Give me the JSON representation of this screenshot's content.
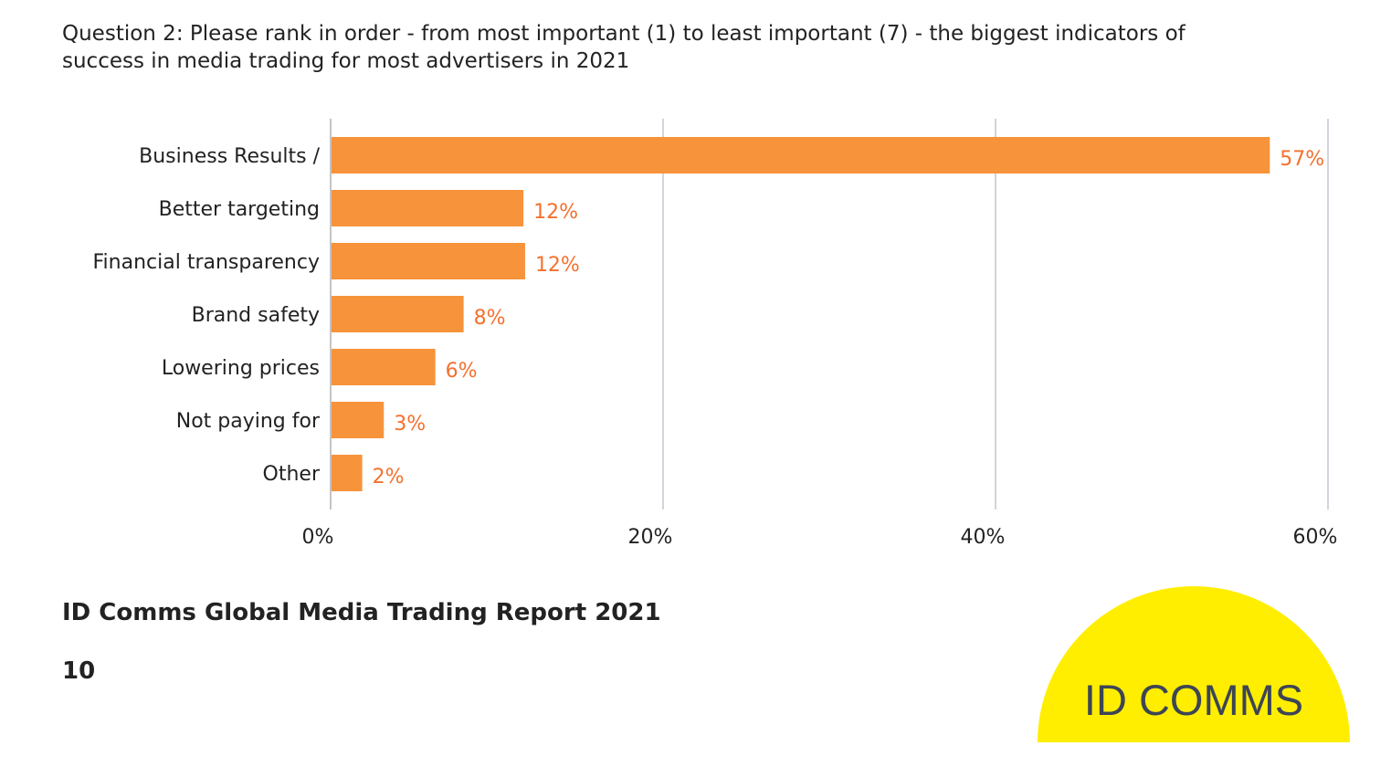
{
  "chart_data": {
    "type": "bar",
    "orientation": "horizontal",
    "title": "Question 2:  Please rank in order - from most important (1) to least important (7) - the biggest indicators of success in media trading for most advertisers in 2021",
    "xlabel": "",
    "ylabel": "",
    "categories": [
      "Business Results /",
      "Better targeting",
      "Financial transparency",
      "Brand safety",
      "Lowering prices",
      "Not paying for",
      "Other"
    ],
    "values": [
      56.5,
      11.6,
      11.7,
      8.0,
      6.3,
      3.2,
      1.9
    ],
    "data_labels": [
      "57%",
      "12%",
      "12%",
      "8%",
      "6%",
      "3%",
      "2%"
    ],
    "xlim": [
      0,
      60
    ],
    "xticks": [
      0,
      20,
      40,
      60
    ],
    "xtick_labels": [
      "0%",
      "20%",
      "40%",
      "60%"
    ],
    "grid": true,
    "legend": "none",
    "colors": {
      "bar": "#f7933b",
      "label": "#f4702e",
      "grid": "#a7a9b8"
    }
  },
  "footer": {
    "source": "ID Comms Global Media Trading Report 2021",
    "page_number": "10"
  },
  "logo": {
    "text": "ID COMMS",
    "color": "#ffee00",
    "text_color": "#3d4554"
  }
}
